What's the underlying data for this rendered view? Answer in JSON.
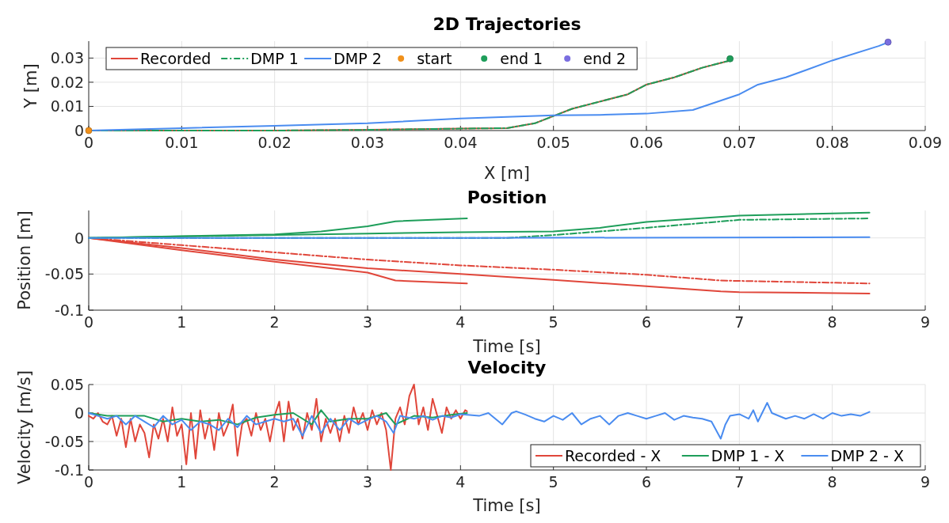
{
  "chart_data": [
    {
      "type": "line",
      "title": "2D Trajectories",
      "xlabel": "X [m]",
      "ylabel": "Y [m]",
      "xlim": [
        0,
        0.09
      ],
      "xticks": [
        0,
        0.01,
        0.02,
        0.03,
        0.04,
        0.05,
        0.06,
        0.07,
        0.08,
        0.09
      ],
      "ylim": [
        0,
        0.037
      ],
      "yticks": [
        0,
        0.01,
        0.02,
        0.03
      ],
      "grid": true,
      "legend": "top left",
      "series": [
        {
          "name": "Recorded",
          "color": "#e0463a",
          "x": [
            0,
            0.01,
            0.02,
            0.03,
            0.04,
            0.045,
            0.048,
            0.05,
            0.052,
            0.055,
            0.058,
            0.06,
            0.063,
            0.066,
            0.069
          ],
          "values": [
            0,
            0,
            0,
            0.0003,
            0.0008,
            0.001,
            0.003,
            0.006,
            0.009,
            0.012,
            0.015,
            0.019,
            0.022,
            0.026,
            0.029
          ]
        },
        {
          "name": "DMP 1",
          "color": "#1e9e5a",
          "line_style": "dashed",
          "x": [
            0,
            0.01,
            0.02,
            0.03,
            0.04,
            0.045,
            0.048,
            0.05,
            0.052,
            0.055,
            0.058,
            0.06,
            0.063,
            0.066,
            0.069
          ],
          "values": [
            0,
            0,
            0,
            0.0003,
            0.0008,
            0.001,
            0.003,
            0.006,
            0.009,
            0.012,
            0.015,
            0.019,
            0.022,
            0.026,
            0.029
          ]
        },
        {
          "name": "DMP 2",
          "color": "#4a8cf0",
          "x": [
            0,
            0.01,
            0.02,
            0.03,
            0.04,
            0.05,
            0.055,
            0.06,
            0.065,
            0.07,
            0.072,
            0.075,
            0.08,
            0.085,
            0.086
          ],
          "values": [
            0,
            0.001,
            0.002,
            0.003,
            0.005,
            0.0063,
            0.0065,
            0.007,
            0.0085,
            0.015,
            0.019,
            0.022,
            0.029,
            0.035,
            0.0365
          ]
        },
        {
          "name": "start",
          "type": "scatter",
          "marker": "circle",
          "color": "#f0901a",
          "x": [
            0
          ],
          "values": [
            0
          ]
        },
        {
          "name": "end 1",
          "type": "scatter",
          "marker": "circle",
          "color": "#1e9e5a",
          "x": [
            0.069
          ],
          "values": [
            0.0297
          ]
        },
        {
          "name": "end 2",
          "type": "scatter",
          "marker": "circle",
          "color": "#7a6ee0",
          "x": [
            0.086
          ],
          "values": [
            0.0366
          ]
        }
      ]
    },
    {
      "type": "line",
      "title": "Position",
      "xlabel": "Time [s]",
      "ylabel": "Position [m]",
      "xlim": [
        0,
        9
      ],
      "xticks": [
        0,
        1,
        2,
        3,
        4,
        5,
        6,
        7,
        8,
        9
      ],
      "ylim": [
        -0.1,
        0.038
      ],
      "yticks": [
        -0.1,
        -0.05,
        0
      ],
      "grid": true,
      "series": [
        {
          "color": "#e0463a",
          "line_style": "solid",
          "x": [
            0,
            1,
            2,
            3,
            3.3,
            4.07
          ],
          "values": [
            0,
            -0.017,
            -0.033,
            -0.048,
            -0.059,
            -0.063
          ]
        },
        {
          "color": "#e0463a",
          "line_style": "solid",
          "x": [
            0,
            1,
            2,
            3,
            4,
            5,
            6,
            6.8,
            7,
            8.4
          ],
          "values": [
            0,
            -0.014,
            -0.03,
            -0.042,
            -0.05,
            -0.058,
            -0.067,
            -0.074,
            -0.075,
            -0.077
          ]
        },
        {
          "color": "#e0463a",
          "line_style": "dashed",
          "x": [
            0,
            1,
            2,
            3,
            4,
            5,
            6,
            6.8,
            8.4
          ],
          "values": [
            0,
            -0.01,
            -0.02,
            -0.03,
            -0.038,
            -0.044,
            -0.051,
            -0.059,
            -0.063
          ]
        },
        {
          "color": "#1e9e5a",
          "line_style": "solid",
          "x": [
            0,
            2,
            2.5,
            3,
            3.3,
            4.07
          ],
          "values": [
            0,
            0.005,
            0.009,
            0.016,
            0.023,
            0.027
          ]
        },
        {
          "color": "#1e9e5a",
          "line_style": "solid",
          "x": [
            0,
            1,
            2,
            3,
            4,
            5,
            5.5,
            6,
            7,
            8,
            8.4
          ],
          "values": [
            0,
            0.002,
            0.004,
            0.006,
            0.008,
            0.009,
            0.014,
            0.022,
            0.031,
            0.034,
            0.035
          ]
        },
        {
          "color": "#1e9e5a",
          "line_style": "dashed",
          "x": [
            0,
            4.5,
            5,
            6,
            7,
            8.4
          ],
          "values": [
            0,
            0,
            0.004,
            0.014,
            0.025,
            0.027
          ]
        },
        {
          "color": "#4a8cf0",
          "line_style": "solid",
          "x": [
            0,
            4,
            8.4
          ],
          "values": [
            0,
            0,
            0.001
          ]
        }
      ]
    },
    {
      "type": "line",
      "title": "Velocity",
      "xlabel": "Time [s]",
      "ylabel": "Velocity [m/s]",
      "xlim": [
        0,
        9
      ],
      "xticks": [
        0,
        1,
        2,
        3,
        4,
        5,
        6,
        7,
        8,
        9
      ],
      "ylim": [
        -0.1,
        0.05
      ],
      "yticks": [
        -0.1,
        -0.05,
        0,
        0.05
      ],
      "grid": true,
      "legend": "bottom right",
      "series": [
        {
          "name": "Recorded - X",
          "color": "#e0463a",
          "x": [
            0,
            0.05,
            0.1,
            0.15,
            0.2,
            0.25,
            0.3,
            0.35,
            0.4,
            0.45,
            0.5,
            0.55,
            0.6,
            0.65,
            0.7,
            0.75,
            0.8,
            0.85,
            0.9,
            0.95,
            1,
            1.05,
            1.1,
            1.15,
            1.2,
            1.25,
            1.3,
            1.35,
            1.4,
            1.45,
            1.5,
            1.55,
            1.6,
            1.65,
            1.7,
            1.75,
            1.8,
            1.85,
            1.9,
            1.95,
            2,
            2.05,
            2.1,
            2.15,
            2.2,
            2.25,
            2.3,
            2.35,
            2.4,
            2.45,
            2.5,
            2.55,
            2.6,
            2.65,
            2.7,
            2.75,
            2.8,
            2.85,
            2.9,
            2.95,
            3,
            3.05,
            3.1,
            3.15,
            3.2,
            3.25,
            3.3,
            3.35,
            3.4,
            3.45,
            3.5,
            3.55,
            3.6,
            3.65,
            3.7,
            3.75,
            3.8,
            3.85,
            3.9,
            3.95,
            4,
            4.05,
            4.07
          ],
          "values": [
            -0.005,
            -0.01,
            0,
            -0.015,
            -0.02,
            -0.005,
            -0.04,
            -0.01,
            -0.06,
            -0.01,
            -0.05,
            -0.02,
            -0.035,
            -0.078,
            -0.02,
            -0.045,
            -0.01,
            -0.05,
            0.01,
            -0.04,
            -0.02,
            -0.09,
            0,
            -0.08,
            0.005,
            -0.045,
            -0.01,
            -0.065,
            0,
            -0.04,
            -0.02,
            0.015,
            -0.075,
            -0.02,
            -0.01,
            -0.04,
            0,
            -0.03,
            -0.01,
            -0.05,
            -0.005,
            0.02,
            -0.05,
            0.02,
            -0.03,
            -0.01,
            -0.045,
            0,
            -0.03,
            0.025,
            -0.05,
            -0.01,
            -0.035,
            -0.01,
            -0.05,
            -0.005,
            -0.035,
            0.01,
            -0.02,
            0,
            -0.03,
            0.005,
            -0.02,
            0,
            -0.03,
            -0.1,
            -0.01,
            0.01,
            -0.02,
            0.03,
            0.05,
            -0.02,
            0.01,
            -0.03,
            0.025,
            -0.005,
            -0.035,
            0.01,
            -0.01,
            0.005,
            -0.01,
            0.005,
            0.003
          ]
        },
        {
          "name": "DMP 1 - X",
          "color": "#1e9e5a",
          "x": [
            0,
            0.2,
            0.4,
            0.6,
            0.8,
            1,
            1.2,
            1.4,
            1.6,
            1.8,
            2,
            2.2,
            2.4,
            2.5,
            2.6,
            2.8,
            3,
            3.2,
            3.3,
            3.5,
            3.7,
            3.9,
            4.07
          ],
          "values": [
            0,
            -0.005,
            -0.005,
            -0.005,
            -0.015,
            -0.01,
            -0.015,
            -0.012,
            -0.02,
            -0.008,
            -0.003,
            0,
            -0.02,
            0.005,
            -0.015,
            -0.01,
            -0.01,
            0,
            -0.02,
            -0.005,
            -0.008,
            -0.003,
            0
          ]
        },
        {
          "name": "DMP 2 - X",
          "color": "#4a8cf0",
          "x": [
            0,
            0.1,
            0.2,
            0.3,
            0.4,
            0.5,
            0.6,
            0.7,
            0.8,
            0.9,
            1,
            1.1,
            1.2,
            1.3,
            1.4,
            1.5,
            1.6,
            1.7,
            1.8,
            1.9,
            2,
            2.1,
            2.2,
            2.3,
            2.4,
            2.5,
            2.6,
            2.7,
            2.8,
            2.9,
            3,
            3.1,
            3.2,
            3.28,
            3.35,
            3.5,
            3.6,
            3.7,
            3.8,
            3.9,
            4,
            4.2,
            4.3,
            4.45,
            4.55,
            4.6,
            4.7,
            4.8,
            4.9,
            5,
            5.1,
            5.2,
            5.3,
            5.4,
            5.5,
            5.6,
            5.7,
            5.8,
            5.9,
            6,
            6.1,
            6.2,
            6.3,
            6.4,
            6.5,
            6.6,
            6.7,
            6.8,
            6.85,
            6.9,
            7,
            7.1,
            7.15,
            7.2,
            7.3,
            7.35,
            7.5,
            7.6,
            7.7,
            7.8,
            7.9,
            8,
            8.1,
            8.2,
            8.3,
            8.4
          ],
          "values": [
            0,
            -0.005,
            -0.01,
            -0.005,
            -0.02,
            -0.005,
            -0.015,
            -0.025,
            -0.005,
            -0.02,
            -0.012,
            -0.03,
            -0.015,
            -0.02,
            -0.03,
            -0.01,
            -0.025,
            -0.005,
            -0.02,
            -0.015,
            -0.01,
            -0.015,
            -0.01,
            -0.04,
            -0.005,
            -0.035,
            -0.01,
            -0.03,
            -0.01,
            -0.02,
            -0.012,
            -0.005,
            -0.015,
            -0.035,
            -0.005,
            -0.01,
            -0.005,
            -0.012,
            -0.005,
            -0.008,
            -0.002,
            -0.005,
            0,
            -0.02,
            0,
            0.003,
            -0.003,
            -0.01,
            -0.015,
            -0.005,
            -0.012,
            0,
            -0.02,
            -0.01,
            -0.005,
            -0.02,
            -0.005,
            0,
            -0.005,
            -0.01,
            -0.005,
            0,
            -0.012,
            -0.005,
            -0.008,
            -0.01,
            -0.015,
            -0.045,
            -0.02,
            -0.005,
            -0.002,
            -0.01,
            0.005,
            -0.015,
            0.018,
            0,
            -0.01,
            -0.005,
            -0.01,
            -0.002,
            -0.01,
            0,
            -0.005,
            -0.002,
            -0.005,
            0.002
          ]
        }
      ]
    }
  ]
}
